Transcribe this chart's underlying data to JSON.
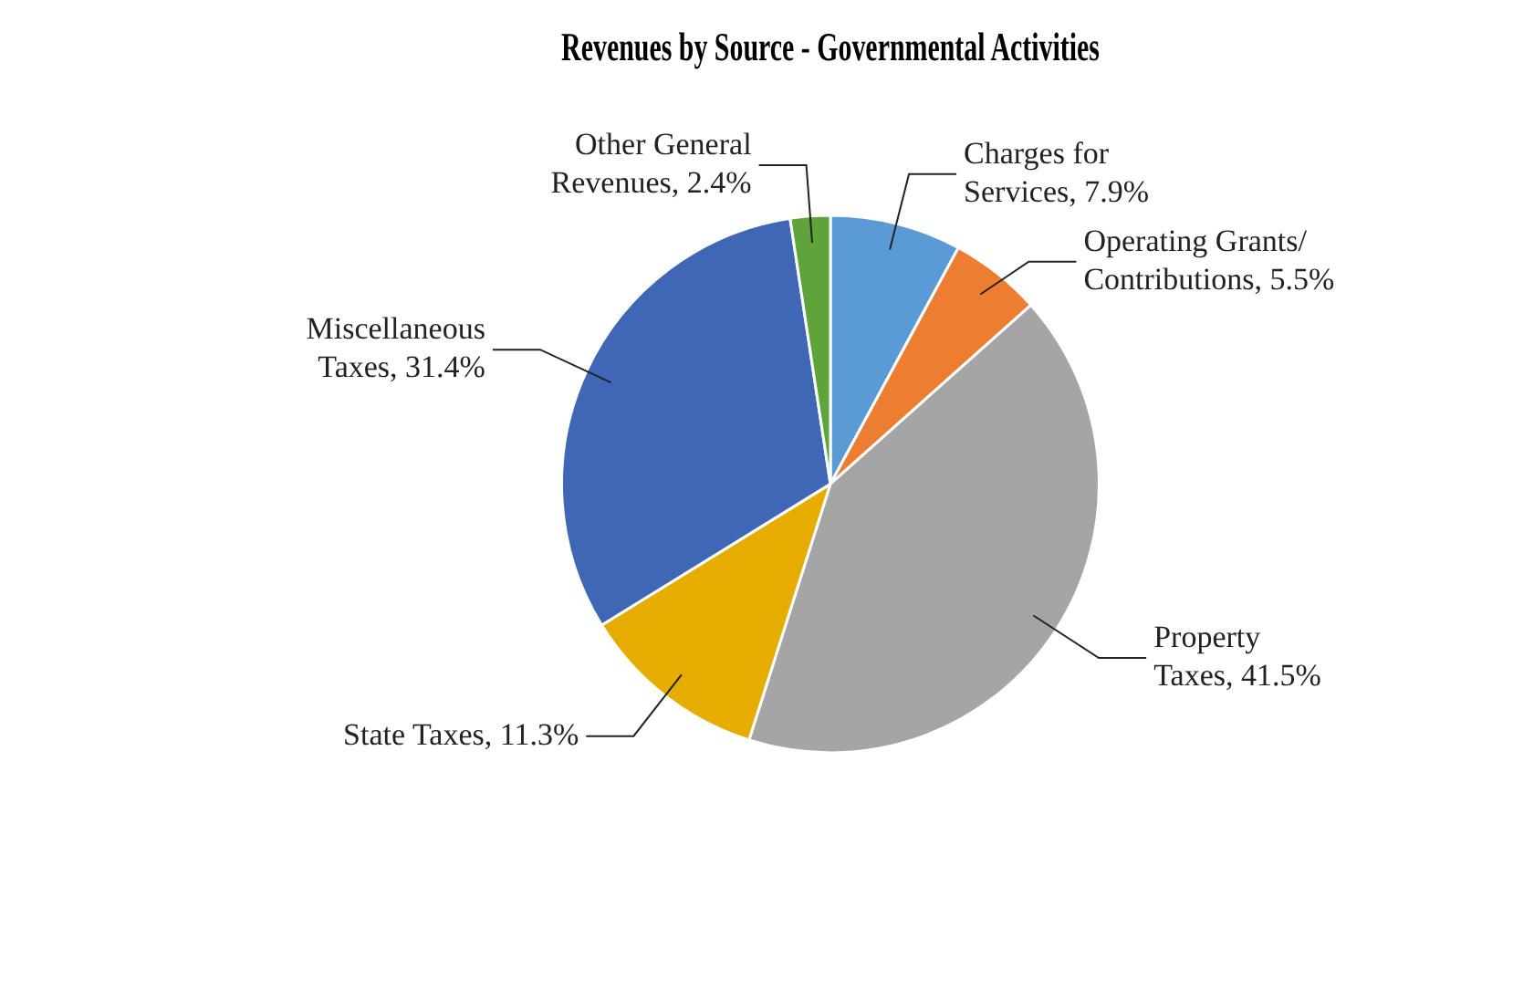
{
  "chart_data": {
    "type": "pie",
    "title": "Revenues by Source - Governmental Activities",
    "categories": [
      "Charges for Services",
      "Operating Grants/ Contributions",
      "Property Taxes",
      "State Taxes",
      "Miscellaneous Taxes",
      "Other General Revenues"
    ],
    "values": [
      7.9,
      5.5,
      41.5,
      11.3,
      31.4,
      2.4
    ],
    "value_labels": [
      "7.9%",
      "5.5%",
      "41.5%",
      "11.3%",
      "31.4%",
      "2.4%"
    ],
    "colors": [
      "#5b9bd5",
      "#ed7d31",
      "#a5a5a5",
      "#e6ac00",
      "#3f67b5",
      "#5fa43a"
    ],
    "legend": false
  }
}
